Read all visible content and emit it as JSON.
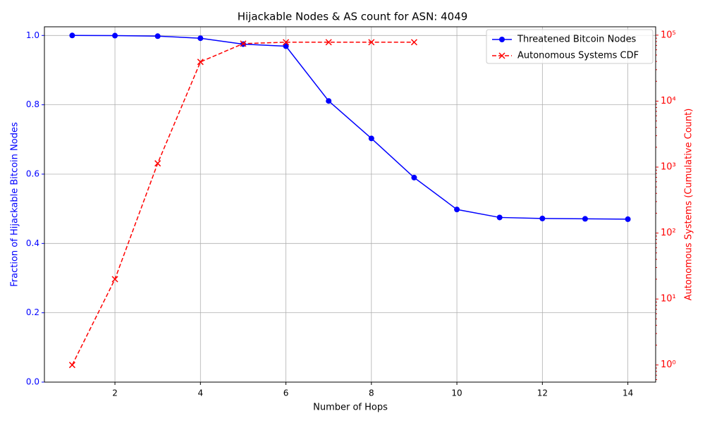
{
  "chart_data": {
    "type": "line",
    "title": "Hijackable Nodes & AS count for ASN: 4049",
    "x_label": "Number of Hops",
    "y_label": "Fraction of Hijackable Bitcoin Nodes",
    "y2_label": "Autonomous Systems (Cumulative Count)",
    "x": [
      1,
      2,
      3,
      4,
      5,
      6,
      7,
      8,
      9,
      10,
      11,
      12,
      13,
      14
    ],
    "xlim": [
      0.35,
      14.65
    ],
    "xticks": [
      2,
      4,
      6,
      8,
      10,
      12,
      14
    ],
    "ylim": [
      0,
      1.025
    ],
    "yticks": [
      {
        "value": 0,
        "label": "0.0"
      },
      0.2,
      0.4,
      0.6,
      0.8,
      {
        "value": 1,
        "label": "1.0"
      }
    ],
    "y2lim": [
      0.55,
      134000
    ],
    "y2scale": "log",
    "y2ticks": [
      {
        "value": 1,
        "label": "10⁰"
      },
      {
        "value": 10,
        "label": "10¹"
      },
      {
        "value": 100,
        "label": "10²"
      },
      {
        "value": 1000,
        "label": "10³"
      },
      {
        "value": 10000,
        "label": "10⁴"
      },
      {
        "value": 100000,
        "label": "10⁵"
      }
    ],
    "grid": true,
    "legend": "upper right",
    "series": [
      {
        "name": "Threatened Bitcoin Nodes",
        "color": "#0000ff",
        "axis": "y",
        "marker": "o",
        "linestyle": "solid",
        "values": [
          1.0,
          0.9995,
          0.998,
          0.992,
          0.975,
          0.969,
          0.811,
          0.703,
          0.59,
          0.498,
          0.475,
          0.472,
          0.471,
          0.47
        ]
      },
      {
        "name": "Autonomous Systems CDF",
        "color": "#ff0000",
        "axis": "y2",
        "marker": "x",
        "linestyle": "dashed",
        "values": [
          1,
          20,
          1140,
          39300,
          74500,
          78200,
          78200,
          78200,
          78200,
          null,
          null,
          null,
          null,
          null
        ]
      }
    ]
  }
}
